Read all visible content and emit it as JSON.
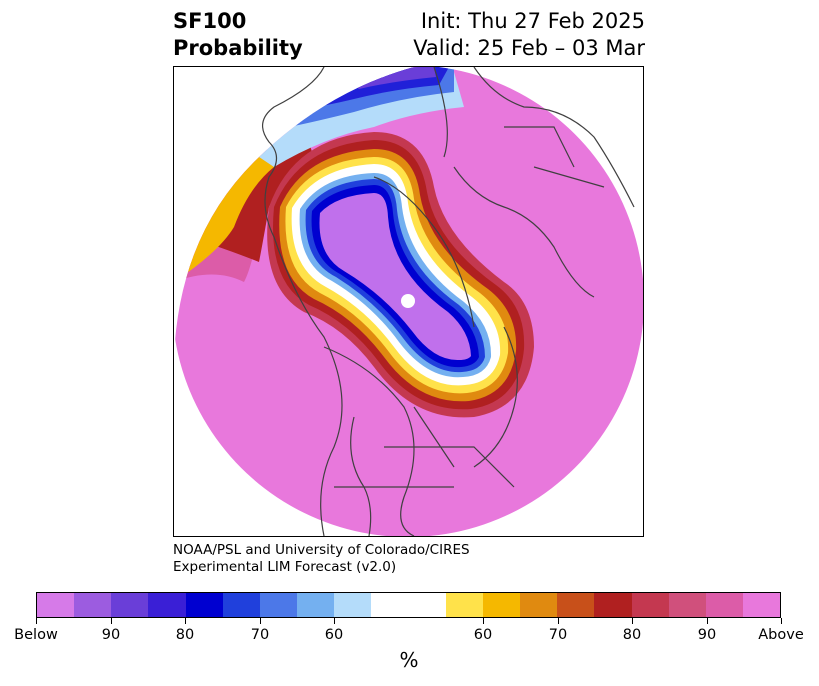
{
  "title": {
    "line1": "SF100",
    "line2": "Probability"
  },
  "subtitle": {
    "init": "Init: Thu 27 Feb 2025",
    "valid": "Valid: 25 Feb – 03 Mar"
  },
  "credit": {
    "line1": "NOAA/PSL and University of Colorado/CIRES",
    "line2": "Experimental LIM Forecast (v2.0)"
  },
  "colorbar": {
    "unit": "%",
    "colors": [
      "#d67ae8",
      "#9c5ce0",
      "#6a3ed8",
      "#3a1fd6",
      "#0000d0",
      "#2040dc",
      "#4c78e8",
      "#74b0f0",
      "#b4dcfa",
      "#ffffff",
      "#ffffff",
      "#ffe24a",
      "#f5b800",
      "#e08a10",
      "#c8501a",
      "#b02020",
      "#c43850",
      "#d0507c",
      "#dc5ca8",
      "#e878dc"
    ],
    "tick_labels": [
      "Below",
      "90",
      "80",
      "70",
      "60",
      "60",
      "70",
      "80",
      "90",
      "Above"
    ]
  },
  "map": {
    "colors": {
      "above": "#e878dc",
      "above_mid": "#dc5ca8",
      "above_high": "#b02020",
      "orange": "#e08a10",
      "yellow": "#ffe24a",
      "below_core": "#c070ec",
      "below_deep": "#2020d8",
      "below_light": "#74b0f0",
      "coast": "#404040"
    }
  }
}
